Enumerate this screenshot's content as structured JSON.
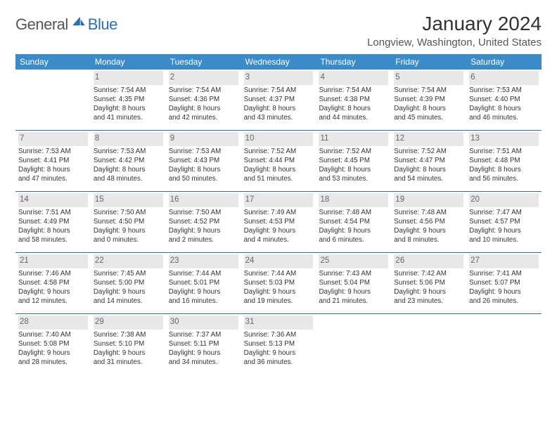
{
  "brand": {
    "part1": "General",
    "part2": "Blue"
  },
  "title": "January 2024",
  "location": "Longview, Washington, United States",
  "colors": {
    "header_bg": "#3b8bc9",
    "header_text": "#ffffff",
    "row_border": "#2b6fb3",
    "daynum_bg": "#e8e8e8",
    "text": "#333333",
    "brand_blue": "#2b6fb3",
    "brand_gray": "#555555"
  },
  "day_headers": [
    "Sunday",
    "Monday",
    "Tuesday",
    "Wednesday",
    "Thursday",
    "Friday",
    "Saturday"
  ],
  "weeks": [
    [
      {
        "num": "",
        "sunrise": "",
        "sunset": "",
        "daylight1": "",
        "daylight2": ""
      },
      {
        "num": "1",
        "sunrise": "Sunrise: 7:54 AM",
        "sunset": "Sunset: 4:35 PM",
        "daylight1": "Daylight: 8 hours",
        "daylight2": "and 41 minutes."
      },
      {
        "num": "2",
        "sunrise": "Sunrise: 7:54 AM",
        "sunset": "Sunset: 4:36 PM",
        "daylight1": "Daylight: 8 hours",
        "daylight2": "and 42 minutes."
      },
      {
        "num": "3",
        "sunrise": "Sunrise: 7:54 AM",
        "sunset": "Sunset: 4:37 PM",
        "daylight1": "Daylight: 8 hours",
        "daylight2": "and 43 minutes."
      },
      {
        "num": "4",
        "sunrise": "Sunrise: 7:54 AM",
        "sunset": "Sunset: 4:38 PM",
        "daylight1": "Daylight: 8 hours",
        "daylight2": "and 44 minutes."
      },
      {
        "num": "5",
        "sunrise": "Sunrise: 7:54 AM",
        "sunset": "Sunset: 4:39 PM",
        "daylight1": "Daylight: 8 hours",
        "daylight2": "and 45 minutes."
      },
      {
        "num": "6",
        "sunrise": "Sunrise: 7:53 AM",
        "sunset": "Sunset: 4:40 PM",
        "daylight1": "Daylight: 8 hours",
        "daylight2": "and 46 minutes."
      }
    ],
    [
      {
        "num": "7",
        "sunrise": "Sunrise: 7:53 AM",
        "sunset": "Sunset: 4:41 PM",
        "daylight1": "Daylight: 8 hours",
        "daylight2": "and 47 minutes."
      },
      {
        "num": "8",
        "sunrise": "Sunrise: 7:53 AM",
        "sunset": "Sunset: 4:42 PM",
        "daylight1": "Daylight: 8 hours",
        "daylight2": "and 48 minutes."
      },
      {
        "num": "9",
        "sunrise": "Sunrise: 7:53 AM",
        "sunset": "Sunset: 4:43 PM",
        "daylight1": "Daylight: 8 hours",
        "daylight2": "and 50 minutes."
      },
      {
        "num": "10",
        "sunrise": "Sunrise: 7:52 AM",
        "sunset": "Sunset: 4:44 PM",
        "daylight1": "Daylight: 8 hours",
        "daylight2": "and 51 minutes."
      },
      {
        "num": "11",
        "sunrise": "Sunrise: 7:52 AM",
        "sunset": "Sunset: 4:45 PM",
        "daylight1": "Daylight: 8 hours",
        "daylight2": "and 53 minutes."
      },
      {
        "num": "12",
        "sunrise": "Sunrise: 7:52 AM",
        "sunset": "Sunset: 4:47 PM",
        "daylight1": "Daylight: 8 hours",
        "daylight2": "and 54 minutes."
      },
      {
        "num": "13",
        "sunrise": "Sunrise: 7:51 AM",
        "sunset": "Sunset: 4:48 PM",
        "daylight1": "Daylight: 8 hours",
        "daylight2": "and 56 minutes."
      }
    ],
    [
      {
        "num": "14",
        "sunrise": "Sunrise: 7:51 AM",
        "sunset": "Sunset: 4:49 PM",
        "daylight1": "Daylight: 8 hours",
        "daylight2": "and 58 minutes."
      },
      {
        "num": "15",
        "sunrise": "Sunrise: 7:50 AM",
        "sunset": "Sunset: 4:50 PM",
        "daylight1": "Daylight: 9 hours",
        "daylight2": "and 0 minutes."
      },
      {
        "num": "16",
        "sunrise": "Sunrise: 7:50 AM",
        "sunset": "Sunset: 4:52 PM",
        "daylight1": "Daylight: 9 hours",
        "daylight2": "and 2 minutes."
      },
      {
        "num": "17",
        "sunrise": "Sunrise: 7:49 AM",
        "sunset": "Sunset: 4:53 PM",
        "daylight1": "Daylight: 9 hours",
        "daylight2": "and 4 minutes."
      },
      {
        "num": "18",
        "sunrise": "Sunrise: 7:48 AM",
        "sunset": "Sunset: 4:54 PM",
        "daylight1": "Daylight: 9 hours",
        "daylight2": "and 6 minutes."
      },
      {
        "num": "19",
        "sunrise": "Sunrise: 7:48 AM",
        "sunset": "Sunset: 4:56 PM",
        "daylight1": "Daylight: 9 hours",
        "daylight2": "and 8 minutes."
      },
      {
        "num": "20",
        "sunrise": "Sunrise: 7:47 AM",
        "sunset": "Sunset: 4:57 PM",
        "daylight1": "Daylight: 9 hours",
        "daylight2": "and 10 minutes."
      }
    ],
    [
      {
        "num": "21",
        "sunrise": "Sunrise: 7:46 AM",
        "sunset": "Sunset: 4:58 PM",
        "daylight1": "Daylight: 9 hours",
        "daylight2": "and 12 minutes."
      },
      {
        "num": "22",
        "sunrise": "Sunrise: 7:45 AM",
        "sunset": "Sunset: 5:00 PM",
        "daylight1": "Daylight: 9 hours",
        "daylight2": "and 14 minutes."
      },
      {
        "num": "23",
        "sunrise": "Sunrise: 7:44 AM",
        "sunset": "Sunset: 5:01 PM",
        "daylight1": "Daylight: 9 hours",
        "daylight2": "and 16 minutes."
      },
      {
        "num": "24",
        "sunrise": "Sunrise: 7:44 AM",
        "sunset": "Sunset: 5:03 PM",
        "daylight1": "Daylight: 9 hours",
        "daylight2": "and 19 minutes."
      },
      {
        "num": "25",
        "sunrise": "Sunrise: 7:43 AM",
        "sunset": "Sunset: 5:04 PM",
        "daylight1": "Daylight: 9 hours",
        "daylight2": "and 21 minutes."
      },
      {
        "num": "26",
        "sunrise": "Sunrise: 7:42 AM",
        "sunset": "Sunset: 5:06 PM",
        "daylight1": "Daylight: 9 hours",
        "daylight2": "and 23 minutes."
      },
      {
        "num": "27",
        "sunrise": "Sunrise: 7:41 AM",
        "sunset": "Sunset: 5:07 PM",
        "daylight1": "Daylight: 9 hours",
        "daylight2": "and 26 minutes."
      }
    ],
    [
      {
        "num": "28",
        "sunrise": "Sunrise: 7:40 AM",
        "sunset": "Sunset: 5:08 PM",
        "daylight1": "Daylight: 9 hours",
        "daylight2": "and 28 minutes."
      },
      {
        "num": "29",
        "sunrise": "Sunrise: 7:38 AM",
        "sunset": "Sunset: 5:10 PM",
        "daylight1": "Daylight: 9 hours",
        "daylight2": "and 31 minutes."
      },
      {
        "num": "30",
        "sunrise": "Sunrise: 7:37 AM",
        "sunset": "Sunset: 5:11 PM",
        "daylight1": "Daylight: 9 hours",
        "daylight2": "and 34 minutes."
      },
      {
        "num": "31",
        "sunrise": "Sunrise: 7:36 AM",
        "sunset": "Sunset: 5:13 PM",
        "daylight1": "Daylight: 9 hours",
        "daylight2": "and 36 minutes."
      },
      {
        "num": "",
        "sunrise": "",
        "sunset": "",
        "daylight1": "",
        "daylight2": ""
      },
      {
        "num": "",
        "sunrise": "",
        "sunset": "",
        "daylight1": "",
        "daylight2": ""
      },
      {
        "num": "",
        "sunrise": "",
        "sunset": "",
        "daylight1": "",
        "daylight2": ""
      }
    ]
  ]
}
